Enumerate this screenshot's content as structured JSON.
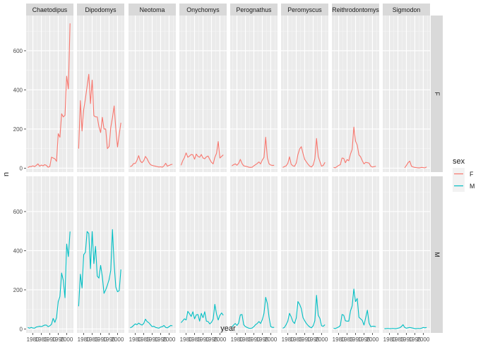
{
  "chart_data": {
    "type": "line",
    "facet_columns": [
      "Chaetodipus",
      "Dipodomys",
      "Neotoma",
      "Onychomys",
      "Perognathus",
      "Peromyscus",
      "Reithrodontomys",
      "Sigmodon"
    ],
    "facet_rows": [
      "F",
      "M"
    ],
    "xlabel": "year",
    "ylabel": "n",
    "y_ticks": [
      0,
      200,
      400,
      600
    ],
    "ylim": [
      -20,
      780
    ],
    "x_ticks": [
      1980,
      1985,
      1990,
      1995,
      2000
    ],
    "x_tick_labels": [
      "1980",
      "1985",
      "1990",
      "1995",
      "2000"
    ],
    "xlim": [
      1976,
      2004
    ],
    "legend": {
      "title": "sex",
      "position": "right",
      "entries": [
        {
          "name": "F",
          "color": "#F8766D"
        },
        {
          "name": "M",
          "color": "#00BFC4"
        }
      ]
    },
    "grid": true,
    "panels": [
      {
        "genus": "Chaetodipus",
        "sex": "F",
        "start_year": 1977,
        "values": [
          3,
          8,
          8,
          12,
          8,
          14,
          22,
          10,
          16,
          12,
          18,
          14,
          5,
          8,
          56,
          52,
          48,
          35,
          176,
          158,
          278,
          262,
          270,
          470,
          405,
          740
        ]
      },
      {
        "genus": "Dipodomys",
        "sex": "F",
        "start_year": 1977,
        "values": [
          100,
          345,
          190,
          300,
          355,
          418,
          480,
          330,
          450,
          268,
          262,
          262,
          212,
          182,
          260,
          200,
          200,
          100,
          110,
          208,
          258,
          318,
          200,
          108,
          172,
          232
        ]
      },
      {
        "genus": "Neotoma",
        "sex": "F",
        "start_year": 1977,
        "values": [
          8,
          12,
          24,
          24,
          40,
          64,
          36,
          28,
          38,
          60,
          48,
          30,
          18,
          14,
          12,
          10,
          8,
          6,
          7,
          5,
          12,
          25,
          10,
          14,
          18,
          20
        ]
      },
      {
        "genus": "Onychomys",
        "sex": "F",
        "start_year": 1977,
        "values": [
          15,
          38,
          54,
          78,
          56,
          62,
          70,
          68,
          46,
          72,
          60,
          56,
          70,
          52,
          48,
          58,
          62,
          45,
          30,
          22,
          55,
          76,
          136,
          52,
          60,
          68
        ]
      },
      {
        "genus": "Perognathus",
        "sex": "F",
        "start_year": 1977,
        "values": [
          12,
          18,
          22,
          15,
          25,
          45,
          24,
          12,
          10,
          8,
          5,
          4,
          5,
          12,
          18,
          24,
          32,
          22,
          42,
          55,
          158,
          52,
          22,
          16,
          14,
          15
        ]
      },
      {
        "genus": "Peromyscus",
        "sex": "F",
        "start_year": 1977,
        "values": [
          4,
          8,
          12,
          24,
          58,
          20,
          12,
          10,
          26,
          70,
          98,
          110,
          75,
          45,
          32,
          20,
          10,
          6,
          16,
          48,
          152,
          60,
          34,
          10,
          14,
          30
        ]
      },
      {
        "genus": "Reithrodontomys",
        "sex": "F",
        "start_year": 1977,
        "values": [
          4,
          2,
          8,
          14,
          18,
          52,
          50,
          28,
          44,
          38,
          72,
          96,
          210,
          138,
          118,
          68,
          58,
          38,
          22,
          30,
          28,
          26,
          10,
          6,
          8,
          10
        ]
      },
      {
        "genus": "Sigmodon",
        "sex": "F",
        "start_year": 1989,
        "values": [
          2,
          14,
          28,
          36,
          10,
          6,
          4,
          3,
          2,
          2,
          4,
          3,
          2,
          6
        ]
      },
      {
        "genus": "Chaetodipus",
        "sex": "M",
        "start_year": 1977,
        "values": [
          8,
          4,
          8,
          5,
          4,
          10,
          12,
          14,
          12,
          16,
          20,
          20,
          12,
          16,
          24,
          54,
          34,
          58,
          140,
          166,
          286,
          248,
          160,
          434,
          370,
          498
        ]
      },
      {
        "genus": "Dipodomys",
        "sex": "M",
        "start_year": 1977,
        "values": [
          116,
          280,
          210,
          380,
          392,
          498,
          488,
          308,
          498,
          334,
          422,
          270,
          260,
          325,
          268,
          182,
          200,
          224,
          252,
          300,
          508,
          330,
          214,
          190,
          196,
          304
        ]
      },
      {
        "genus": "Neotoma",
        "sex": "M",
        "start_year": 1977,
        "values": [
          6,
          10,
          18,
          26,
          22,
          30,
          24,
          20,
          28,
          50,
          38,
          32,
          22,
          12,
          14,
          8,
          6,
          4,
          10,
          12,
          18,
          8,
          6,
          12,
          18,
          16
        ]
      },
      {
        "genus": "Onychomys",
        "sex": "M",
        "start_year": 1977,
        "values": [
          32,
          42,
          52,
          46,
          90,
          78,
          64,
          88,
          52,
          72,
          74,
          40,
          80,
          58,
          88,
          40,
          38,
          26,
          34,
          50,
          126,
          76,
          46,
          70,
          82,
          70
        ]
      },
      {
        "genus": "Perognathus",
        "sex": "M",
        "start_year": 1977,
        "values": [
          10,
          20,
          28,
          18,
          30,
          72,
          74,
          22,
          12,
          8,
          4,
          3,
          5,
          12,
          22,
          28,
          38,
          28,
          48,
          80,
          162,
          130,
          60,
          12,
          8,
          8
        ]
      },
      {
        "genus": "Peromyscus",
        "sex": "M",
        "start_year": 1977,
        "values": [
          4,
          8,
          22,
          40,
          80,
          62,
          38,
          28,
          56,
          140,
          126,
          104,
          58,
          42,
          28,
          18,
          10,
          6,
          16,
          42,
          172,
          70,
          54,
          16,
          14,
          22
        ]
      },
      {
        "genus": "Reithrodontomys",
        "sex": "M",
        "start_year": 1977,
        "values": [
          4,
          2,
          6,
          10,
          18,
          74,
          70,
          42,
          40,
          40,
          92,
          118,
          204,
          140,
          156,
          60,
          52,
          44,
          20,
          58,
          96,
          30,
          12,
          14,
          14,
          12
        ]
      },
      {
        "genus": "Sigmodon",
        "sex": "M",
        "start_year": 1977,
        "values": [
          2,
          2,
          3,
          2,
          2,
          3,
          2,
          2,
          4,
          6,
          12,
          22,
          8,
          4,
          6,
          8,
          6,
          4,
          2,
          2,
          3,
          2,
          4,
          8,
          6,
          8
        ]
      }
    ]
  }
}
